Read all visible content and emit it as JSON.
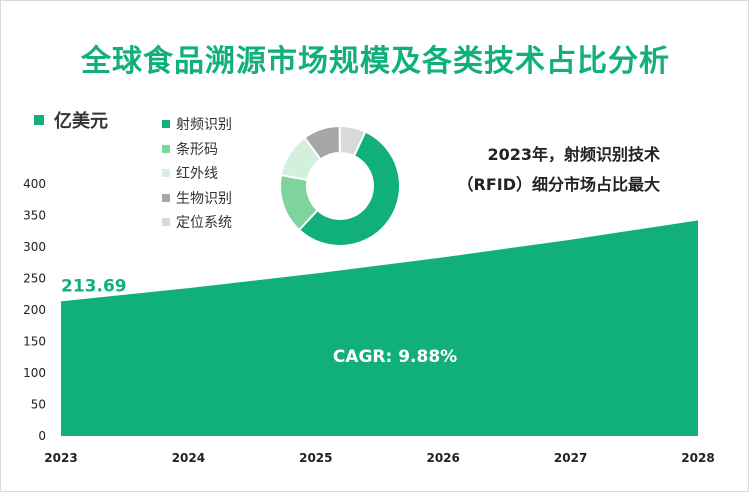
{
  "title": "全球食品溯源市场规模及各类技术占比分析",
  "unit_label": "亿美元",
  "annotation": {
    "line1": "2023年，射频识别技术",
    "line2": "（RFID）细分市场占比最大"
  },
  "colors": {
    "accent": "#11b07a",
    "donut": [
      "#11b07a",
      "#7fd39c",
      "#d2f0dc",
      "#a6a6a6",
      "#d9d9d9"
    ]
  },
  "chart_data": [
    {
      "type": "area",
      "title": "全球食品溯源市场规模及各类技术占比分析",
      "ylabel": "亿美元",
      "x": [
        "2023",
        "2024",
        "2025",
        "2026",
        "2027",
        "2028"
      ],
      "values": [
        213.69,
        234.81,
        258.01,
        283.5,
        311.52,
        342.3
      ],
      "ylim": [
        0,
        400
      ],
      "yticks": [
        0,
        50,
        100,
        150,
        200,
        250,
        300,
        350,
        400
      ],
      "data_label_first": "213.69",
      "cagr_label": "CAGR: 9.88%"
    },
    {
      "type": "pie",
      "subtype": "donut",
      "categories": [
        "射频识别",
        "条形码",
        "红外线",
        "生物识别",
        "定位系统"
      ],
      "values": [
        55,
        16,
        12,
        10,
        7
      ]
    }
  ]
}
